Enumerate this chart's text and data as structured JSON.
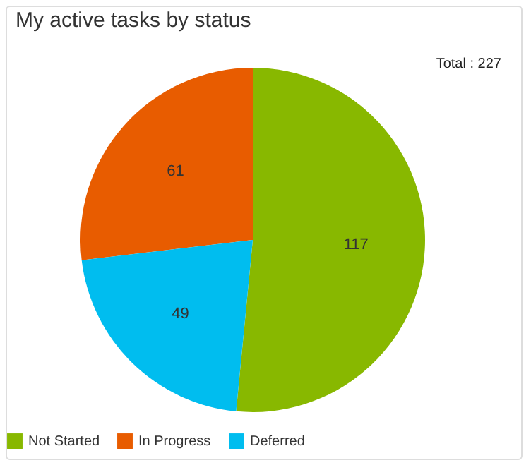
{
  "chart_data": {
    "type": "pie",
    "title": "My active tasks by status",
    "categories": [
      "Not Started",
      "In Progress",
      "Deferred"
    ],
    "values": [
      117,
      61,
      49
    ],
    "colors": [
      "#88b800",
      "#e85c00",
      "#00bdef"
    ],
    "data_labels": true,
    "legend": "bottom",
    "annotations": [
      "Total : 227"
    ]
  }
}
